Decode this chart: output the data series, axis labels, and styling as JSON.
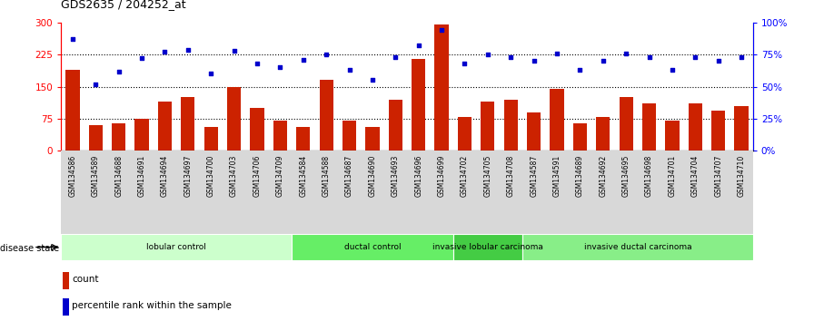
{
  "title": "GDS2635 / 204252_at",
  "samples": [
    "GSM134586",
    "GSM134589",
    "GSM134688",
    "GSM134691",
    "GSM134694",
    "GSM134697",
    "GSM134700",
    "GSM134703",
    "GSM134706",
    "GSM134709",
    "GSM134584",
    "GSM134588",
    "GSM134687",
    "GSM134690",
    "GSM134693",
    "GSM134696",
    "GSM134699",
    "GSM134702",
    "GSM134705",
    "GSM134708",
    "GSM134587",
    "GSM134591",
    "GSM134689",
    "GSM134692",
    "GSM134695",
    "GSM134698",
    "GSM134701",
    "GSM134704",
    "GSM134707",
    "GSM134710"
  ],
  "counts": [
    190,
    60,
    65,
    75,
    115,
    125,
    55,
    150,
    100,
    70,
    55,
    165,
    70,
    55,
    120,
    215,
    295,
    80,
    115,
    120,
    90,
    145,
    65,
    80,
    125,
    110,
    70,
    110,
    95,
    105
  ],
  "percentiles": [
    87,
    52,
    62,
    72,
    77,
    79,
    60,
    78,
    68,
    65,
    71,
    75,
    63,
    55,
    73,
    82,
    94,
    68,
    75,
    73,
    70,
    76,
    63,
    70,
    76,
    73,
    63,
    73,
    70,
    73
  ],
  "groups": [
    {
      "label": "lobular control",
      "start": 0,
      "end": 10,
      "color": "#ccffcc"
    },
    {
      "label": "ductal control",
      "start": 10,
      "end": 17,
      "color": "#66ee66"
    },
    {
      "label": "invasive lobular carcinoma",
      "start": 17,
      "end": 20,
      "color": "#44cc44"
    },
    {
      "label": "invasive ductal carcinoma",
      "start": 20,
      "end": 30,
      "color": "#88ee88"
    }
  ],
  "bar_color": "#cc2200",
  "dot_color": "#0000cc",
  "ylim_left": [
    0,
    300
  ],
  "ylim_right": [
    0,
    100
  ],
  "yticks_left": [
    0,
    75,
    150,
    225,
    300
  ],
  "yticks_right": [
    0,
    25,
    50,
    75,
    100
  ],
  "ytick_labels_left": [
    "0",
    "75",
    "150",
    "225",
    "300"
  ],
  "ytick_labels_right": [
    "0%",
    "25%",
    "50%",
    "75%",
    "100%"
  ],
  "hlines": [
    75,
    150,
    225
  ],
  "plot_bg_color": "#ffffff"
}
